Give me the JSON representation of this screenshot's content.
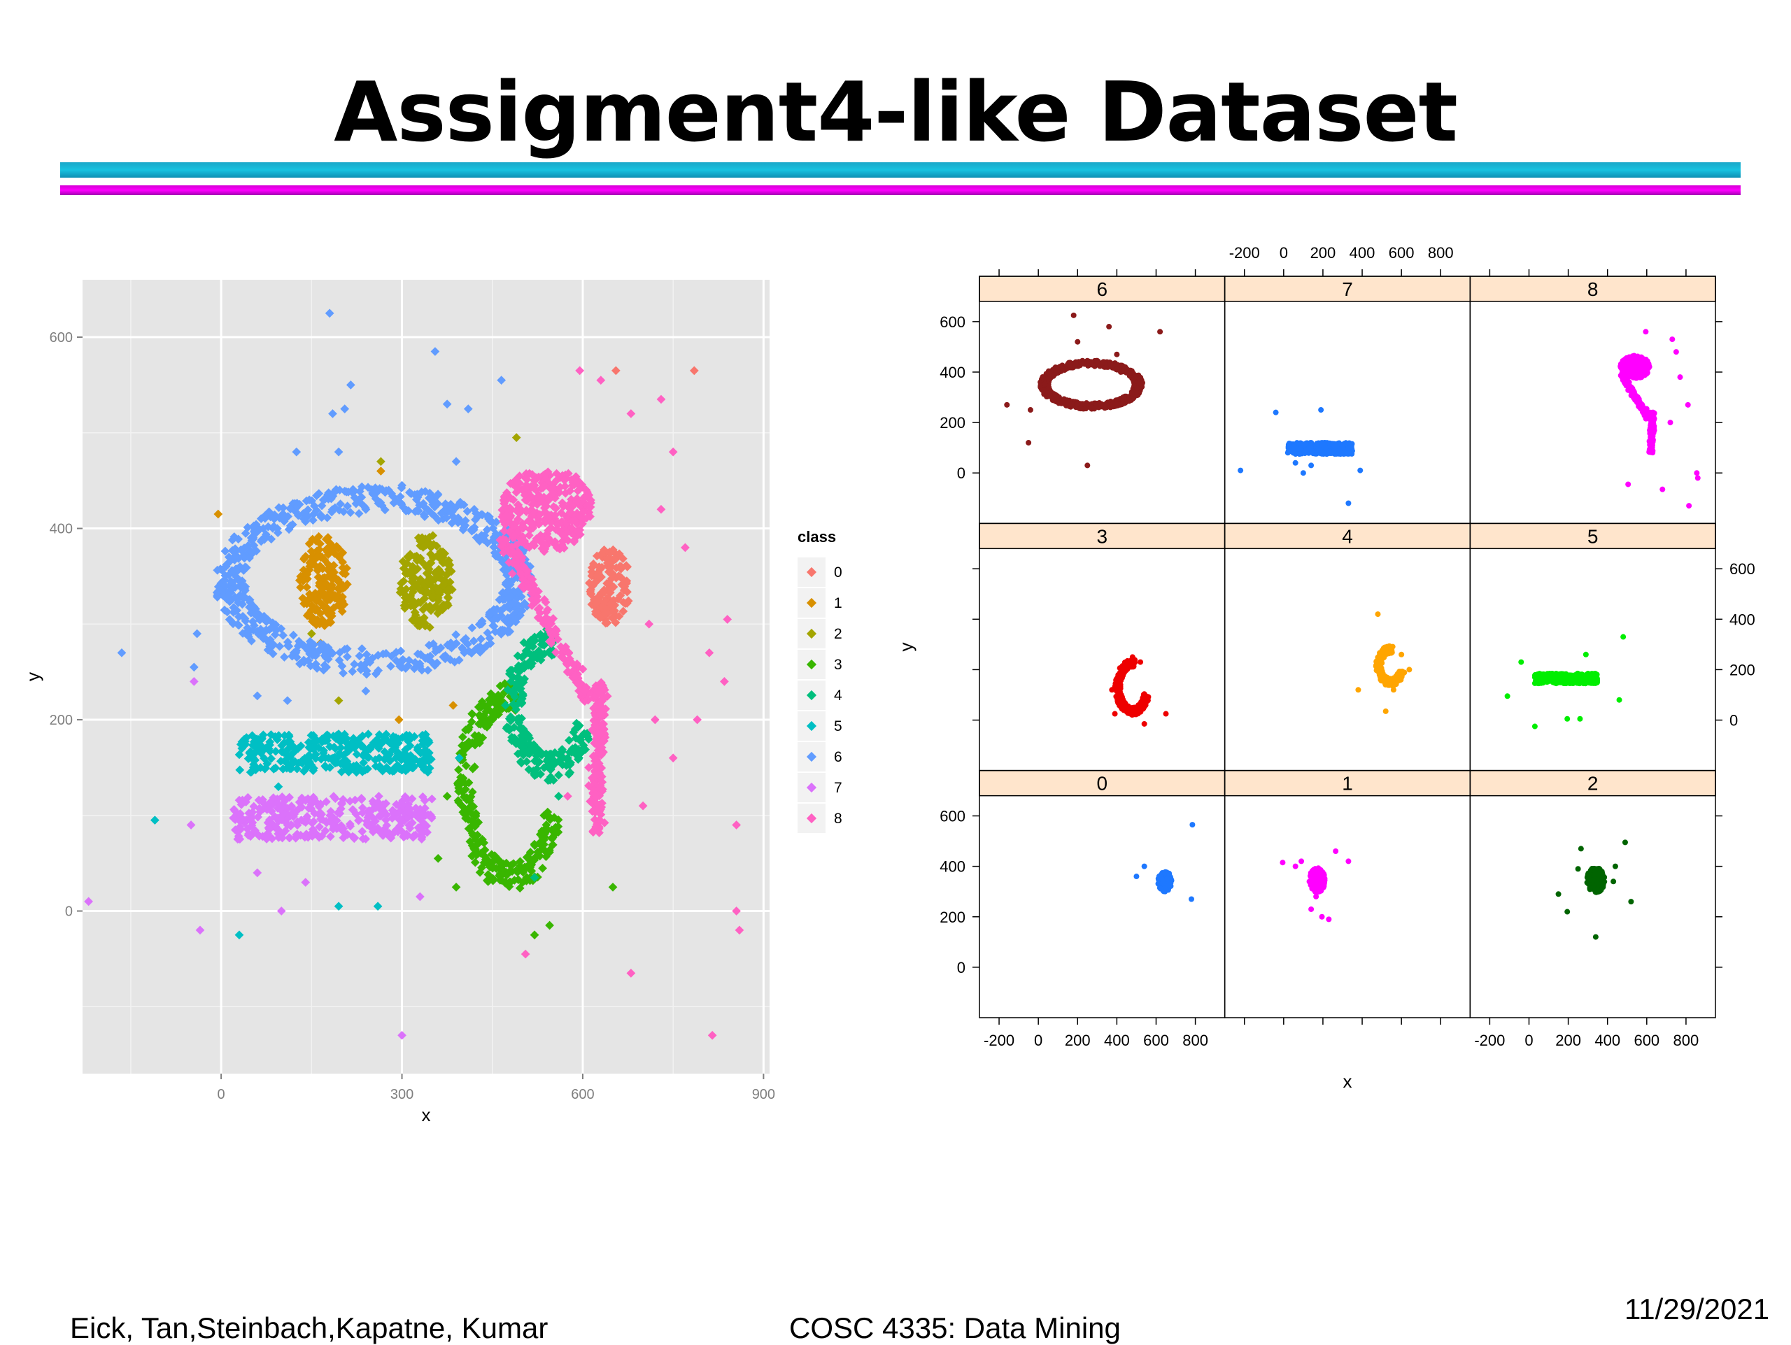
{
  "slide": {
    "title": "Assigment4-like Dataset",
    "footer_left": "Eick, Tan,Steinbach,Kapatne, Kumar",
    "footer_center": "COSC 4335: Data Mining",
    "footer_right": "11/29/2021"
  },
  "chart_data": [
    {
      "type": "scatter",
      "title": "",
      "xlabel": "x",
      "ylabel": "y",
      "xlim": [
        -230,
        910
      ],
      "ylim": [
        -170,
        660
      ],
      "xticks": [
        0,
        300,
        600,
        900
      ],
      "yticks": [
        0,
        200,
        400,
        600
      ],
      "grid": true,
      "background": "#e5e5e5",
      "legend": {
        "title": "class",
        "placement": "right",
        "entries": [
          "0",
          "1",
          "2",
          "3",
          "4",
          "5",
          "6",
          "7",
          "8"
        ]
      },
      "series": [
        {
          "name": "0",
          "color": "#f8766d",
          "shape": "blob",
          "center": [
            645,
            340
          ],
          "radius": [
            35,
            40
          ],
          "count": 140,
          "outliers": [
            [
              785,
              565
            ],
            [
              655,
              565
            ]
          ]
        },
        {
          "name": "1",
          "color": "#d89000",
          "shape": "blob",
          "center": [
            170,
            345
          ],
          "radius": [
            40,
            50
          ],
          "count": 160,
          "outliers": [
            [
              -5,
              415
            ],
            [
              265,
              460
            ],
            [
              165,
              280
            ],
            [
              295,
              200
            ],
            [
              385,
              215
            ],
            [
              560,
              380
            ]
          ]
        },
        {
          "name": "2",
          "color": "#a3a500",
          "shape": "blob",
          "center": [
            340,
            345
          ],
          "radius": [
            45,
            50
          ],
          "count": 170,
          "outliers": [
            [
              490,
              495
            ],
            [
              265,
              470
            ],
            [
              195,
              220
            ],
            [
              150,
              290
            ]
          ]
        },
        {
          "name": "3",
          "color": "#39b600",
          "shape": "crescent",
          "center": [
            480,
            130
          ],
          "radius": [
            75,
            95
          ],
          "count": 300,
          "outliers": [
            [
              650,
              25
            ],
            [
              375,
              120
            ],
            [
              360,
              55
            ],
            [
              390,
              25
            ],
            [
              545,
              -15
            ],
            [
              520,
              -25
            ]
          ]
        },
        {
          "name": "4",
          "color": "#00bf7d",
          "shape": "crescent",
          "center": [
            545,
            215
          ],
          "radius": [
            60,
            65
          ],
          "count": 220,
          "outliers": [
            [
              480,
              420
            ],
            [
              560,
              120
            ],
            [
              520,
              35
            ]
          ]
        },
        {
          "name": "5",
          "color": "#00bfc4",
          "shape": "rect",
          "x": [
            30,
            350
          ],
          "y": [
            145,
            185
          ],
          "count": 320,
          "outliers": [
            [
              -110,
              95
            ],
            [
              30,
              -25
            ],
            [
              195,
              5
            ],
            [
              260,
              5
            ],
            [
              290,
              160
            ],
            [
              395,
              160
            ],
            [
              95,
              130
            ]
          ]
        },
        {
          "name": "6",
          "color": "#619cff",
          "shape": "ring",
          "center": [
            255,
            345
          ],
          "radius": [
            240,
            85
          ],
          "thickness": 28,
          "count": 700,
          "outliers": [
            [
              180,
              625
            ],
            [
              355,
              585
            ],
            [
              205,
              525
            ],
            [
              185,
              520
            ],
            [
              375,
              530
            ],
            [
              410,
              525
            ],
            [
              390,
              470
            ],
            [
              300,
              445
            ],
            [
              125,
              480
            ],
            [
              195,
              480
            ],
            [
              -165,
              270
            ],
            [
              -40,
              290
            ],
            [
              -45,
              255
            ],
            [
              60,
              225
            ],
            [
              110,
              220
            ],
            [
              215,
              550
            ],
            [
              465,
              555
            ],
            [
              240,
              230
            ]
          ]
        },
        {
          "name": "7",
          "color": "#db72fb",
          "shape": "rect",
          "x": [
            20,
            350
          ],
          "y": [
            75,
            120
          ],
          "count": 330,
          "outliers": [
            [
              -35,
              -20
            ],
            [
              -50,
              90
            ],
            [
              -45,
              240
            ],
            [
              -220,
              10
            ],
            [
              60,
              40
            ],
            [
              140,
              30
            ],
            [
              330,
              15
            ],
            [
              300,
              -130
            ],
            [
              100,
              0
            ]
          ]
        },
        {
          "name": "8",
          "color": "#ff61c3",
          "shape": "hook",
          "count": 650,
          "outliers": [
            [
              595,
              565
            ],
            [
              630,
              555
            ],
            [
              680,
              520
            ],
            [
              730,
              535
            ],
            [
              750,
              480
            ],
            [
              730,
              420
            ],
            [
              710,
              300
            ],
            [
              810,
              270
            ],
            [
              840,
              305
            ],
            [
              790,
              200
            ],
            [
              835,
              240
            ],
            [
              855,
              90
            ],
            [
              855,
              0
            ],
            [
              860,
              -20
            ],
            [
              680,
              -65
            ],
            [
              505,
              -45
            ],
            [
              815,
              -130
            ],
            [
              770,
              380
            ],
            [
              720,
              200
            ],
            [
              750,
              160
            ],
            [
              700,
              110
            ],
            [
              610,
              150
            ],
            [
              575,
              120
            ]
          ]
        }
      ]
    },
    {
      "type": "scatter",
      "subtype": "faceted",
      "title": "",
      "xlabel": "x",
      "ylabel": "y",
      "xlim": [
        -300,
        950
      ],
      "ylim": [
        -200,
        680
      ],
      "xticks": [
        -200,
        0,
        200,
        400,
        600,
        800
      ],
      "yticks": [
        0,
        200,
        400,
        600
      ],
      "grid": false,
      "strip_color": "#ffe5cc",
      "panels": [
        {
          "label": "6",
          "row": 0,
          "col": 0,
          "color": "#8b1a1a",
          "shape": "ring",
          "center": [
            270,
            350
          ],
          "radius": [
            240,
            85
          ],
          "thickness": 24,
          "count": 650,
          "outliers": [
            [
              180,
              625
            ],
            [
              360,
              580
            ],
            [
              -160,
              270
            ],
            [
              -40,
              250
            ],
            [
              300,
              445
            ],
            [
              400,
              470
            ],
            [
              620,
              560
            ],
            [
              420,
              400
            ],
            [
              200,
              520
            ],
            [
              -50,
              120
            ],
            [
              250,
              30
            ]
          ]
        },
        {
          "label": "7",
          "row": 0,
          "col": 1,
          "color": "#1e78ff",
          "shape": "rect",
          "x": [
            20,
            350
          ],
          "y": [
            75,
            120
          ],
          "count": 330,
          "outliers": [
            [
              -220,
              10
            ],
            [
              -40,
              240
            ],
            [
              140,
              30
            ],
            [
              190,
              250
            ],
            [
              330,
              -120
            ],
            [
              390,
              10
            ],
            [
              60,
              40
            ],
            [
              100,
              0
            ]
          ]
        },
        {
          "label": "8",
          "row": 0,
          "col": 2,
          "color": "#ff00ff",
          "shape": "hook",
          "count": 650,
          "outliers": [
            [
              595,
              560
            ],
            [
              730,
              530
            ],
            [
              750,
              480
            ],
            [
              810,
              270
            ],
            [
              855,
              0
            ],
            [
              680,
              -65
            ],
            [
              505,
              -45
            ],
            [
              815,
              -130
            ],
            [
              770,
              380
            ],
            [
              720,
              200
            ],
            [
              860,
              -20
            ]
          ]
        },
        {
          "label": "3",
          "row": 1,
          "col": 0,
          "color": "#ee0000",
          "shape": "crescent",
          "center": [
            480,
            130
          ],
          "radius": [
            75,
            95
          ],
          "count": 300,
          "outliers": [
            [
              650,
              25
            ],
            [
              375,
              120
            ],
            [
              540,
              -15
            ],
            [
              520,
              230
            ],
            [
              480,
              250
            ],
            [
              390,
              25
            ]
          ]
        },
        {
          "label": "4",
          "row": 1,
          "col": 1,
          "color": "#ffa500",
          "shape": "crescent",
          "center": [
            545,
            215
          ],
          "radius": [
            60,
            65
          ],
          "count": 220,
          "outliers": [
            [
              480,
              420
            ],
            [
              560,
              120
            ],
            [
              380,
              120
            ],
            [
              640,
              200
            ],
            [
              520,
              35
            ],
            [
              600,
              260
            ]
          ]
        },
        {
          "label": "5",
          "row": 1,
          "col": 2,
          "color": "#00ee00",
          "shape": "rect",
          "x": [
            30,
            350
          ],
          "y": [
            145,
            185
          ],
          "count": 320,
          "outliers": [
            [
              -110,
              95
            ],
            [
              30,
              -25
            ],
            [
              195,
              5
            ],
            [
              260,
              5
            ],
            [
              480,
              330
            ],
            [
              290,
              260
            ],
            [
              -40,
              230
            ],
            [
              460,
              80
            ]
          ]
        },
        {
          "label": "0",
          "row": 2,
          "col": 0,
          "color": "#1e78ff",
          "shape": "blob",
          "center": [
            645,
            340
          ],
          "radius": [
            35,
            40
          ],
          "count": 140,
          "outliers": [
            [
              785,
              565
            ],
            [
              780,
              270
            ],
            [
              540,
              400
            ],
            [
              500,
              360
            ]
          ]
        },
        {
          "label": "1",
          "row": 2,
          "col": 1,
          "color": "#ff00ff",
          "shape": "blob",
          "center": [
            170,
            345
          ],
          "radius": [
            40,
            50
          ],
          "count": 160,
          "outliers": [
            [
              -5,
              415
            ],
            [
              265,
              460
            ],
            [
              165,
              280
            ],
            [
              195,
              200
            ],
            [
              230,
              190
            ],
            [
              60,
              400
            ],
            [
              330,
              420
            ],
            [
              90,
              420
            ],
            [
              140,
              230
            ]
          ]
        },
        {
          "label": "2",
          "row": 2,
          "col": 2,
          "color": "#006400",
          "shape": "blob",
          "center": [
            340,
            345
          ],
          "radius": [
            45,
            50
          ],
          "count": 170,
          "outliers": [
            [
              490,
              495
            ],
            [
              265,
              470
            ],
            [
              195,
              220
            ],
            [
              150,
              290
            ],
            [
              440,
              400
            ],
            [
              520,
              260
            ],
            [
              340,
              120
            ],
            [
              250,
              390
            ],
            [
              430,
              340
            ]
          ]
        }
      ]
    }
  ]
}
